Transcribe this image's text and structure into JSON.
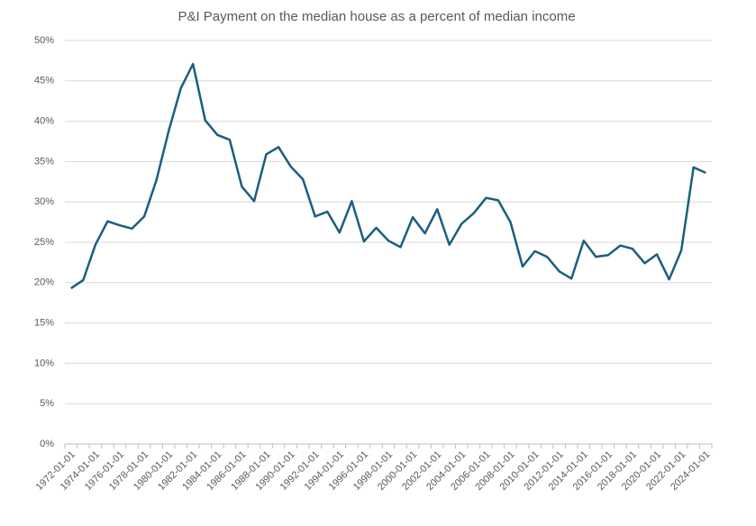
{
  "chart_data": {
    "type": "line",
    "title": "P&I Payment on the median house as a percent of median income",
    "categories": [
      "1972-01-01",
      null,
      "1974-01-01",
      null,
      "1976-01-01",
      null,
      "1978-01-01",
      null,
      "1980-01-01",
      null,
      "1982-01-01",
      null,
      "1984-01-01",
      null,
      "1986-01-01",
      null,
      "1988-01-01",
      null,
      "1990-01-01",
      null,
      "1992-01-01",
      null,
      "1994-01-01",
      null,
      "1996-01-01",
      null,
      "1998-01-01",
      null,
      "2000-01-01",
      null,
      "2002-01-01",
      null,
      "2004-01-01",
      null,
      "2006-01-01",
      null,
      "2008-01-01",
      null,
      "2010-01-01",
      null,
      "2012-01-01",
      null,
      "2014-01-01",
      null,
      "2016-01-01",
      null,
      "2018-01-01",
      null,
      "2020-01-01",
      null,
      "2022-01-01",
      null,
      "2024-01-01"
    ],
    "values": [
      19.3,
      20.3,
      24.7,
      27.6,
      27.1,
      26.7,
      28.2,
      32.7,
      38.8,
      44.1,
      47.1,
      40.1,
      38.3,
      37.7,
      31.9,
      30.1,
      35.9,
      36.8,
      34.4,
      32.8,
      28.2,
      28.8,
      26.2,
      30.1,
      25.1,
      26.8,
      25.2,
      24.4,
      28.1,
      26.1,
      29.1,
      24.7,
      27.3,
      28.6,
      30.5,
      30.2,
      27.5,
      22.0,
      23.9,
      23.2,
      21.4,
      20.5,
      25.2,
      23.2,
      23.4,
      24.6,
      24.2,
      22.4,
      23.5,
      20.4,
      24.0,
      34.3,
      33.6
    ],
    "color": "#1b5e7e",
    "ylim": [
      0,
      50
    ],
    "yticks": [
      {
        "value": 0,
        "label": "0%"
      },
      {
        "value": 5,
        "label": "5%"
      },
      {
        "value": 10,
        "label": "10%"
      },
      {
        "value": 15,
        "label": "15%"
      },
      {
        "value": 20,
        "label": "20%"
      },
      {
        "value": 25,
        "label": "25%"
      },
      {
        "value": 30,
        "label": "30%"
      },
      {
        "value": 35,
        "label": "35%"
      },
      {
        "value": 40,
        "label": "40%"
      },
      {
        "value": 45,
        "label": "45%"
      },
      {
        "value": 50,
        "label": "50%"
      }
    ],
    "grid": true
  }
}
